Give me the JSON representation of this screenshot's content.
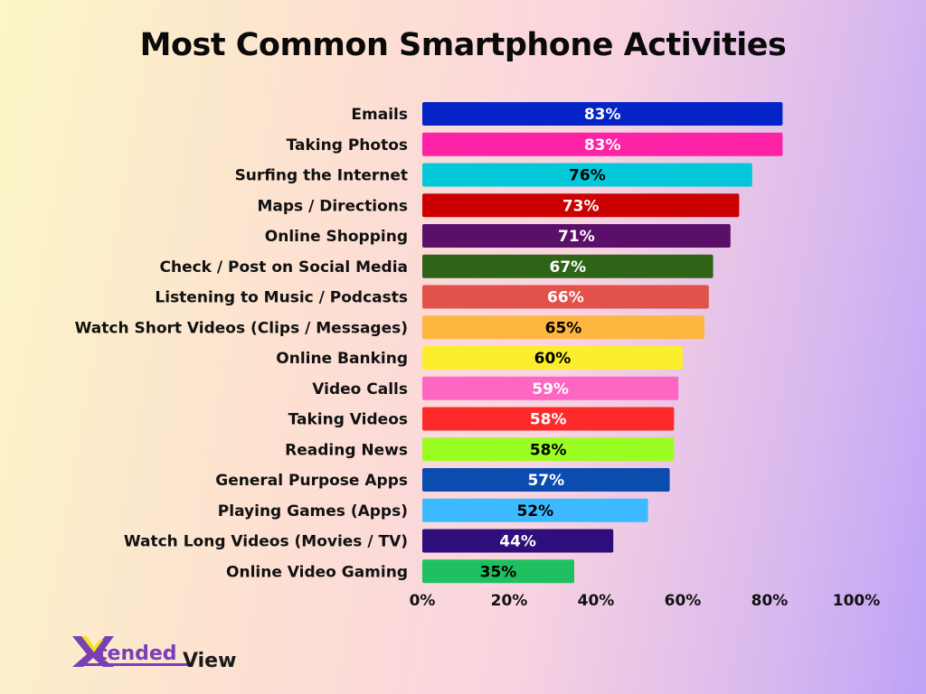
{
  "chart_data": {
    "type": "bar",
    "orientation": "horizontal",
    "title": "Most Common Smartphone Activities",
    "categories": [
      "Emails",
      "Taking Photos",
      "Surfing the Internet",
      "Maps / Directions",
      "Online Shopping",
      "Check / Post on Social Media",
      "Listening to Music / Podcasts",
      "Watch Short Videos (Clips / Messages)",
      "Online Banking",
      "Video Calls",
      "Taking Videos",
      "Reading News",
      "General Purpose Apps",
      "Playing Games (Apps)",
      "Watch Long Videos (Movies / TV)",
      "Online Video Gaming"
    ],
    "values": [
      83,
      83,
      76,
      73,
      71,
      67,
      66,
      65,
      60,
      59,
      58,
      58,
      57,
      52,
      44,
      35
    ],
    "data_labels": [
      "83%",
      "83%",
      "76%",
      "73%",
      "71%",
      "67%",
      "66%",
      "65%",
      "60%",
      "59%",
      "58%",
      "58%",
      "57%",
      "52%",
      "44%",
      "35%"
    ],
    "colors": [
      "#0424c8",
      "#fe22a6",
      "#02c8da",
      "#cc0000",
      "#5a1068",
      "#2e6416",
      "#e0524a",
      "#fdb640",
      "#fcee2c",
      "#fe66c4",
      "#fe2a2a",
      "#9afe22",
      "#0c4cae",
      "#3cbaff",
      "#2e0e7a",
      "#1ec060"
    ],
    "label_colors": [
      "#ffffff",
      "#ffffff",
      "#000000",
      "#ffffff",
      "#ffffff",
      "#ffffff",
      "#ffffff",
      "#000000",
      "#000000",
      "#ffffff",
      "#ffffff",
      "#000000",
      "#ffffff",
      "#000000",
      "#ffffff",
      "#000000"
    ],
    "xlim": [
      0,
      100
    ],
    "xticks": [
      "0%",
      "20%",
      "40%",
      "60%",
      "80%",
      "100%"
    ],
    "grid": false,
    "legend": "none"
  },
  "logo": {
    "text": "XtendedView",
    "colors": {
      "purple": "#7a3fb4",
      "yellow": "#f4e21c",
      "dark": "#1a1a1a"
    }
  }
}
